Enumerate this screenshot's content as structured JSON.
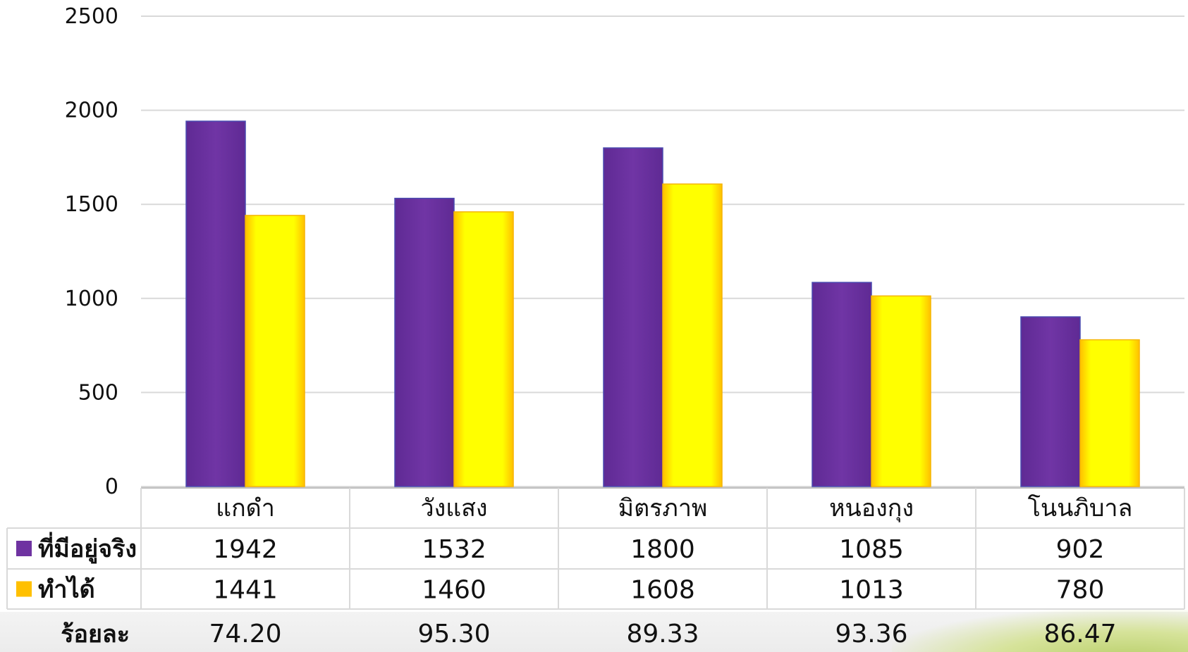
{
  "chart_data": {
    "type": "bar",
    "categories": [
      "แกดำ",
      "วังแสง",
      "มิตรภาพ",
      "หนองกุง",
      "โนนภิบาล"
    ],
    "series": [
      {
        "name": "ที่มีอยู่จริง",
        "values": [
          1942,
          1532,
          1800,
          1085,
          902
        ],
        "color": "#6f33a1"
      },
      {
        "name": "ทำได้",
        "values": [
          1441,
          1460,
          1608,
          1013,
          780
        ],
        "color": "#ffff00"
      }
    ],
    "ylim": [
      0,
      2500
    ],
    "yticks": [
      "0",
      "500",
      "1000",
      "1500",
      "2000",
      "2500"
    ],
    "grid": true,
    "legend": "data-table",
    "percent_row": {
      "label": "ร้อยละ",
      "values": [
        "74.20",
        "95.30",
        "89.33",
        "93.36",
        "86.47"
      ]
    }
  },
  "colors": {
    "grid": "#d9d9d9",
    "table_border": "#d9d9d9"
  }
}
